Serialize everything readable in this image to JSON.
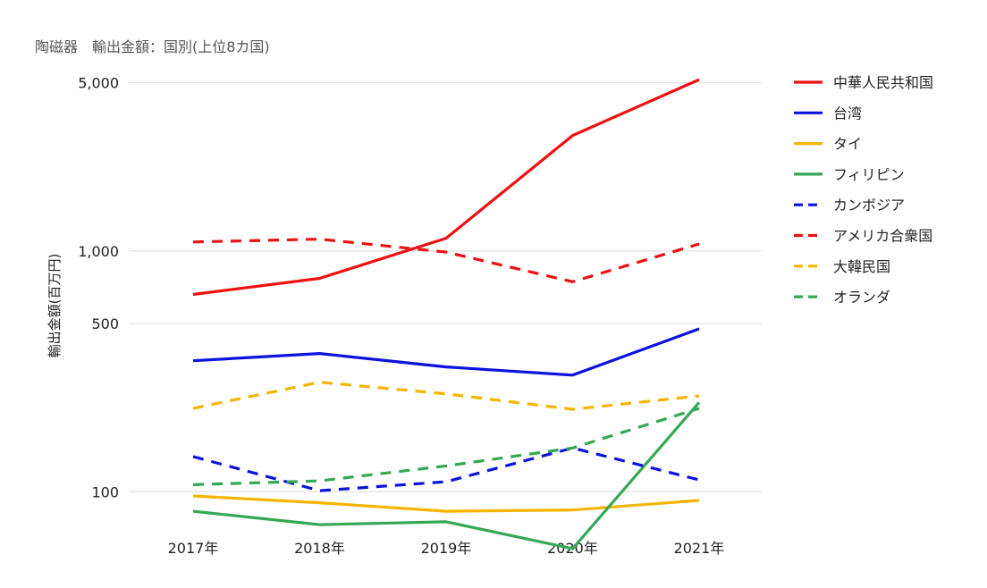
{
  "chart_data": {
    "type": "line",
    "title": "陶磁器　輸出金額：国別(上位8カ国)",
    "xlabel": "",
    "ylabel": "輸出金額(百万円)",
    "y_scale": "log",
    "ylim": [
      70,
      5200
    ],
    "y_ticks": [
      100,
      500,
      1000,
      5000
    ],
    "y_tick_labels": [
      "100",
      "500",
      "1,000",
      "5,000"
    ],
    "categories": [
      "2017年",
      "2018年",
      "2019年",
      "2020年",
      "2021年"
    ],
    "legend_position": "right",
    "series": [
      {
        "name": "中華人民共和国",
        "color": "#ee1111",
        "dash": "solid",
        "values": [
          660,
          770,
          1130,
          3020,
          5150
        ]
      },
      {
        "name": "台湾",
        "color": "#0a12dd",
        "dash": "solid",
        "values": [
          350,
          375,
          330,
          305,
          475
        ]
      },
      {
        "name": "タイ",
        "color": "#f4b400",
        "dash": "solid",
        "values": [
          96,
          90,
          83,
          84,
          92
        ]
      },
      {
        "name": "フィリピン",
        "color": "#35a853",
        "dash": "solid",
        "values": [
          83,
          73,
          75,
          58,
          235
        ]
      },
      {
        "name": "カンボジア",
        "color": "#0a12dd",
        "dash": "dashed",
        "values": [
          140,
          101,
          110,
          152,
          112
        ]
      },
      {
        "name": "アメリカ合衆国",
        "color": "#ee1111",
        "dash": "dashed",
        "values": [
          1090,
          1120,
          990,
          745,
          1070
        ]
      },
      {
        "name": "大韓民国",
        "color": "#f4b400",
        "dash": "dashed",
        "values": [
          222,
          285,
          255,
          220,
          250
        ]
      },
      {
        "name": "オランダ",
        "color": "#35a853",
        "dash": "dashed",
        "values": [
          107,
          111,
          128,
          152,
          222
        ]
      }
    ]
  }
}
